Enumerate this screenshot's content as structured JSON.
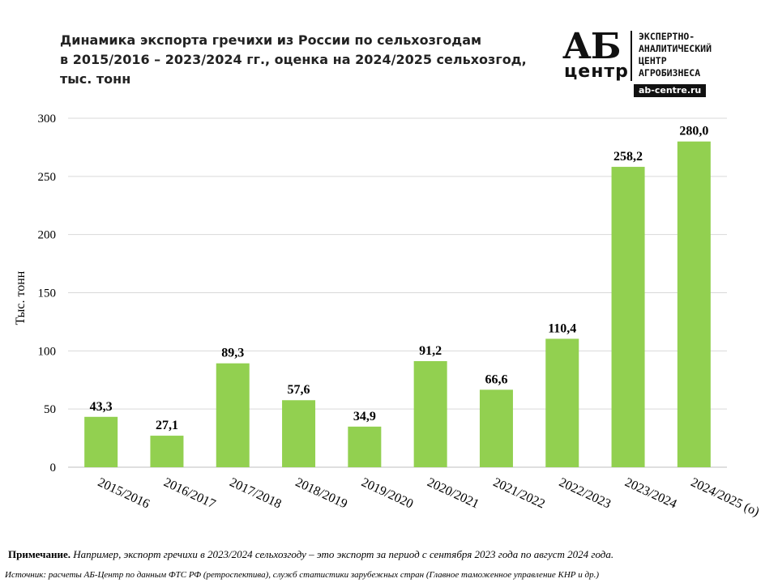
{
  "title": {
    "line1": "Динамика экспорта гречихи из России по сельхозгодам",
    "line2": "в 2015/2016 – 2023/2024 гг., оценка на 2024/2025 сельхозгод,",
    "line3": "тыс. тонн"
  },
  "logo": {
    "mark_top": "АБ",
    "mark_bottom": "центр",
    "lines": [
      "ЭКСПЕРТНО-",
      "АНАЛИТИЧЕСКИЙ",
      "ЦЕНТР",
      "АГРОБИЗНЕСА"
    ],
    "site": "ab-centre.ru"
  },
  "chart_data": {
    "type": "bar",
    "categories": [
      "2015/2016",
      "2016/2017",
      "2017/2018",
      "2018/2019",
      "2019/2020",
      "2020/2021",
      "2021/2022",
      "2022/2023",
      "2023/2024",
      "2024/2025 (о)"
    ],
    "values": [
      43.3,
      27.1,
      89.3,
      57.6,
      34.9,
      91.2,
      66.6,
      110.4,
      258.2,
      280.0
    ],
    "data_labels": [
      "43,3",
      "27,1",
      "89,3",
      "57,6",
      "34,9",
      "91,2",
      "66,6",
      "110,4",
      "258,2",
      "280,0"
    ],
    "ylabel": "Тыс. тонн",
    "ylim": [
      0,
      300
    ],
    "yticks": [
      0,
      50,
      100,
      150,
      200,
      250,
      300
    ],
    "grid": true,
    "bar_color": "#92d050",
    "grid_color": "#d9d9d9"
  },
  "footer": {
    "note_label": "Примечание.",
    "note_text": " Например, экспорт гречихи в 2023/2024 сельхозгоду – это экспорт за период с сентября 2023 года по август 2024 года.",
    "source": "Источник: расчеты АБ-Центр по данным ФТС РФ (ретроспектива), служб статистики зарубежных стран (Главное таможенное управление КНР и др.)"
  }
}
